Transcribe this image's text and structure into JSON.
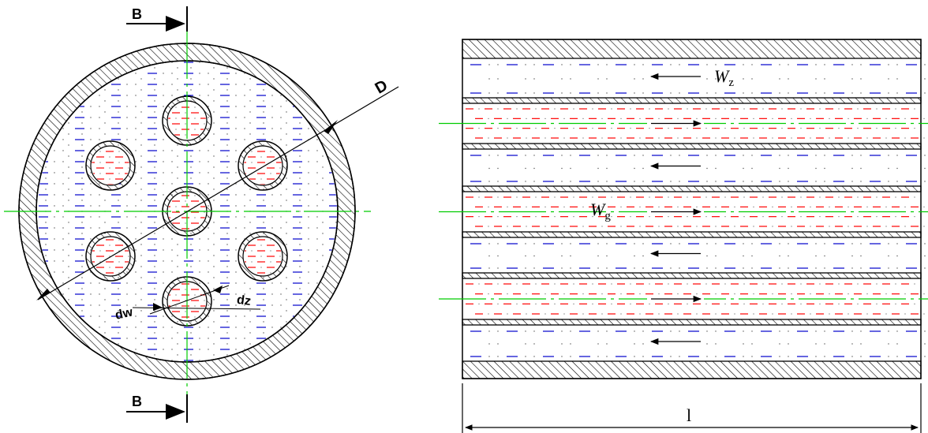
{
  "labels": {
    "section_top": "B",
    "section_bottom": "B",
    "shell_diameter": "D",
    "tube_outer_diameter": "dw",
    "tube_inner_diameter": "dz",
    "shell_flow_velocity": "W",
    "shell_flow_subscript": "z",
    "tube_flow_velocity": "W",
    "tube_flow_subscript": "g",
    "length": "l"
  },
  "colors": {
    "outline": "#000000",
    "centerline": "#00cc00",
    "shell_fluid": "#0000cc",
    "tube_fluid": "#ff0000",
    "hatch": "#000000"
  }
}
